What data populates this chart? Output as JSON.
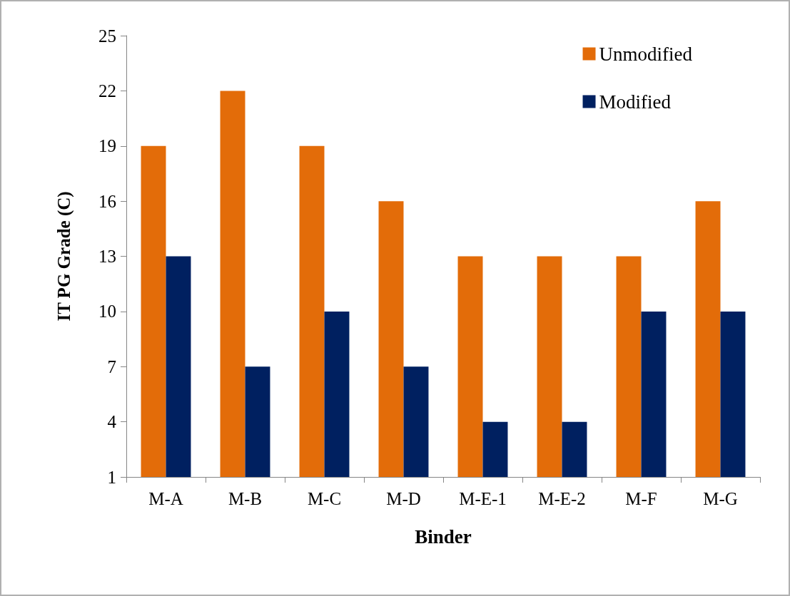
{
  "chart_data": {
    "type": "bar",
    "xlabel": "Binder",
    "ylabel": "IT PG Grade (C)",
    "categories": [
      "M-A",
      "M-B",
      "M-C",
      "M-D",
      "M-E-1",
      "M-E-2",
      "M-F",
      "M-G"
    ],
    "series": [
      {
        "name": "Unmodified",
        "color": "#e36c09",
        "values": [
          19,
          22,
          19,
          16,
          13,
          13,
          13,
          16
        ]
      },
      {
        "name": "Modified",
        "color": "#002060",
        "values": [
          13,
          7,
          10,
          7,
          4,
          4,
          10,
          10
        ]
      }
    ],
    "ylim": [
      1,
      25
    ],
    "yticks": [
      1,
      4,
      7,
      10,
      13,
      16,
      19,
      22,
      25
    ],
    "grid": false,
    "legend": "top right"
  }
}
